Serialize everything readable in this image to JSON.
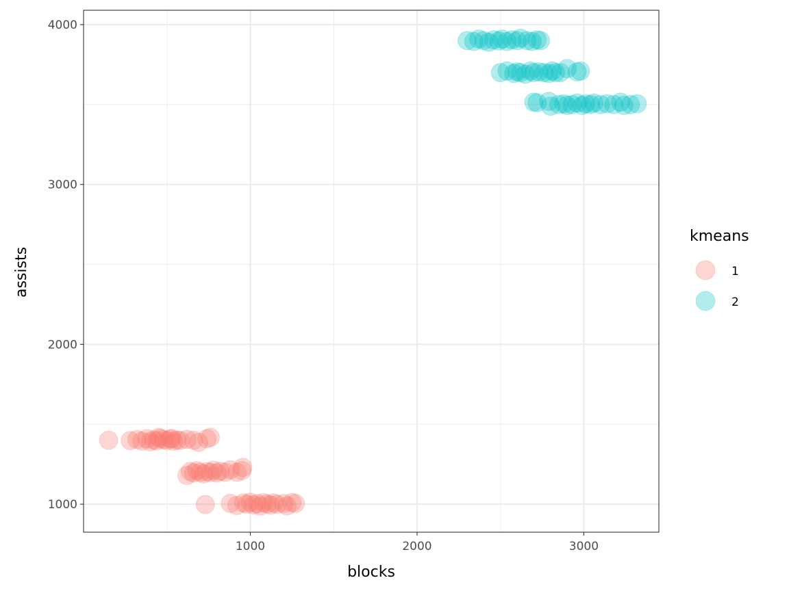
{
  "chart_data": {
    "type": "scatter",
    "xlabel": "blocks",
    "ylabel": "assists",
    "xlim": [
      0,
      3450
    ],
    "ylim": [
      825,
      4090
    ],
    "x_ticks": [
      1000,
      2000,
      3000
    ],
    "x_tick_labels": [
      "1000",
      "2000",
      "3000"
    ],
    "x_minor": [
      500,
      1500,
      2500
    ],
    "y_ticks": [
      1000,
      2000,
      3000,
      4000
    ],
    "y_tick_labels": [
      "1000",
      "2000",
      "3000",
      "4000"
    ],
    "y_minor": [
      1500,
      2500,
      3500
    ],
    "grid": true,
    "legend": {
      "title": "kmeans",
      "placement": "right",
      "entries": [
        {
          "label": "1",
          "color": "#F8766D"
        },
        {
          "label": "2",
          "color": "#00BFC4"
        }
      ]
    },
    "point_opacity": 0.3,
    "series": [
      {
        "name": "1",
        "color": "#F8766D",
        "points": [
          [
            150,
            1400
          ],
          [
            280,
            1398
          ],
          [
            320,
            1405
          ],
          [
            350,
            1395
          ],
          [
            380,
            1410
          ],
          [
            400,
            1390
          ],
          [
            420,
            1402
          ],
          [
            440,
            1396
          ],
          [
            460,
            1412
          ],
          [
            480,
            1404
          ],
          [
            500,
            1398
          ],
          [
            520,
            1408
          ],
          [
            540,
            1394
          ],
          [
            560,
            1401
          ],
          [
            580,
            1399
          ],
          [
            620,
            1406
          ],
          [
            660,
            1400
          ],
          [
            690,
            1387
          ],
          [
            740,
            1410
          ],
          [
            760,
            1418
          ],
          [
            450,
            1418
          ],
          [
            530,
            1412
          ],
          [
            620,
            1180
          ],
          [
            640,
            1205
          ],
          [
            660,
            1195
          ],
          [
            680,
            1210
          ],
          [
            700,
            1200
          ],
          [
            720,
            1190
          ],
          [
            740,
            1204
          ],
          [
            760,
            1198
          ],
          [
            780,
            1212
          ],
          [
            800,
            1196
          ],
          [
            820,
            1206
          ],
          [
            850,
            1200
          ],
          [
            880,
            1215
          ],
          [
            920,
            1200
          ],
          [
            950,
            1210
          ],
          [
            955,
            1230
          ],
          [
            730,
            998
          ],
          [
            880,
            1005
          ],
          [
            920,
            992
          ],
          [
            960,
            1008
          ],
          [
            980,
            1000
          ],
          [
            1000,
            1012
          ],
          [
            1020,
            996
          ],
          [
            1040,
            1004
          ],
          [
            1060,
            988
          ],
          [
            1080,
            1010
          ],
          [
            1100,
            1002
          ],
          [
            1120,
            994
          ],
          [
            1140,
            1008
          ],
          [
            1160,
            1000
          ],
          [
            1200,
            1004
          ],
          [
            1220,
            990
          ],
          [
            1250,
            1010
          ],
          [
            1270,
            1005
          ]
        ]
      },
      {
        "name": "2",
        "color": "#00BFC4",
        "points": [
          [
            2300,
            3900
          ],
          [
            2340,
            3895
          ],
          [
            2370,
            3910
          ],
          [
            2400,
            3900
          ],
          [
            2430,
            3890
          ],
          [
            2460,
            3905
          ],
          [
            2490,
            3898
          ],
          [
            2510,
            3910
          ],
          [
            2540,
            3895
          ],
          [
            2570,
            3905
          ],
          [
            2600,
            3900
          ],
          [
            2620,
            3915
          ],
          [
            2660,
            3900
          ],
          [
            2690,
            3895
          ],
          [
            2720,
            3905
          ],
          [
            2740,
            3900
          ],
          [
            2500,
            3700
          ],
          [
            2540,
            3710
          ],
          [
            2580,
            3695
          ],
          [
            2600,
            3705
          ],
          [
            2620,
            3700
          ],
          [
            2650,
            3690
          ],
          [
            2680,
            3710
          ],
          [
            2700,
            3700
          ],
          [
            2730,
            3705
          ],
          [
            2760,
            3700
          ],
          [
            2790,
            3695
          ],
          [
            2810,
            3710
          ],
          [
            2830,
            3700
          ],
          [
            2860,
            3700
          ],
          [
            2900,
            3725
          ],
          [
            2960,
            3705
          ],
          [
            2980,
            3710
          ],
          [
            2700,
            3515
          ],
          [
            2720,
            3512
          ],
          [
            2790,
            3520
          ],
          [
            2800,
            3490
          ],
          [
            2850,
            3500
          ],
          [
            2880,
            3505
          ],
          [
            2900,
            3495
          ],
          [
            2930,
            3500
          ],
          [
            2960,
            3510
          ],
          [
            2990,
            3495
          ],
          [
            3010,
            3505
          ],
          [
            3040,
            3500
          ],
          [
            3060,
            3510
          ],
          [
            3100,
            3500
          ],
          [
            3140,
            3505
          ],
          [
            3180,
            3500
          ],
          [
            3220,
            3515
          ],
          [
            3240,
            3495
          ],
          [
            3280,
            3500
          ],
          [
            3320,
            3505
          ]
        ]
      }
    ]
  }
}
